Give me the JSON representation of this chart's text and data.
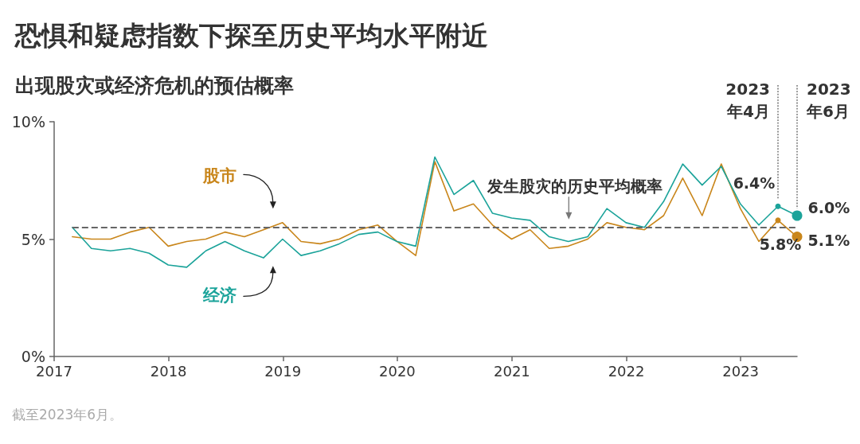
{
  "chart_data": {
    "type": "line",
    "title": "恐惧和疑虑指数下探至历史平均水平附近",
    "subtitle": "出现股灾或经济危机的预估概率",
    "x": [
      "2017-02-28",
      "2017-04-30",
      "2017-06-30",
      "2017-08-31",
      "2017-10-31",
      "2017-12-31",
      "2018-02-28",
      "2018-04-30",
      "2018-06-30",
      "2018-08-31",
      "2018-10-31",
      "2018-12-31",
      "2019-02-28",
      "2019-04-30",
      "2019-06-30",
      "2019-08-31",
      "2019-10-31",
      "2019-12-31",
      "2020-02-29",
      "2020-04-30",
      "2020-06-30",
      "2020-08-31",
      "2020-10-31",
      "2020-12-31",
      "2021-02-28",
      "2021-04-30",
      "2021-06-30",
      "2021-08-31",
      "2021-10-31",
      "2021-12-31",
      "2022-02-28",
      "2022-04-30",
      "2022-06-30",
      "2022-08-31",
      "2022-10-31",
      "2022-12-31",
      "2023-02-28",
      "2023-04-30",
      "2023-06-30"
    ],
    "series": [
      {
        "name": "股市",
        "color": "#c9861b",
        "values": [
          5.1,
          5.0,
          5.0,
          5.3,
          5.5,
          4.7,
          4.9,
          5.0,
          5.3,
          5.1,
          5.4,
          5.7,
          4.9,
          4.8,
          5.0,
          5.4,
          5.6,
          4.9,
          4.3,
          8.3,
          6.2,
          6.5,
          5.6,
          5.0,
          5.4,
          4.6,
          4.7,
          5.0,
          5.7,
          5.5,
          5.4,
          6.0,
          7.6,
          6.0,
          8.2,
          6.3,
          4.9,
          5.8,
          5.1
        ],
        "value_labels": [
          null,
          null,
          null,
          null,
          null,
          null,
          null,
          null,
          null,
          null,
          null,
          null,
          null,
          null,
          null,
          null,
          null,
          null,
          null,
          null,
          null,
          null,
          null,
          null,
          null,
          null,
          null,
          null,
          null,
          null,
          null,
          null,
          null,
          null,
          null,
          null,
          null,
          "5.8%",
          "5.1%"
        ]
      },
      {
        "name": "经济",
        "color": "#1ba39a",
        "values": [
          5.5,
          4.6,
          4.5,
          4.6,
          4.4,
          3.9,
          3.8,
          4.5,
          4.9,
          4.5,
          4.2,
          5.0,
          4.3,
          4.5,
          4.8,
          5.2,
          5.3,
          4.9,
          4.7,
          8.5,
          6.9,
          7.5,
          6.1,
          5.9,
          5.8,
          5.1,
          4.9,
          5.1,
          6.3,
          5.7,
          5.5,
          6.6,
          8.2,
          7.3,
          8.1,
          6.5,
          5.6,
          6.4,
          6.0
        ],
        "value_labels": [
          null,
          null,
          null,
          null,
          null,
          null,
          null,
          null,
          null,
          null,
          null,
          null,
          null,
          null,
          null,
          null,
          null,
          null,
          null,
          null,
          null,
          null,
          null,
          null,
          null,
          null,
          null,
          null,
          null,
          null,
          null,
          null,
          null,
          null,
          null,
          null,
          null,
          "6.4%",
          "6.0%"
        ]
      }
    ],
    "xlim": [
      "2017-01-01",
      "2023-06-30"
    ],
    "xticks": [
      "2017",
      "2018",
      "2019",
      "2020",
      "2021",
      "2022",
      "2023"
    ],
    "ylim": [
      0,
      10
    ],
    "yticks": [
      {
        "value": 0,
        "label": "0%"
      },
      {
        "value": 5,
        "label": "5%"
      },
      {
        "value": 10,
        "label": "10%"
      }
    ],
    "grid": false,
    "ref_lines": [
      {
        "axis": "y",
        "value": 5.5,
        "label": "发生股灾的历史平均概率",
        "line_style": "dashed",
        "color": "#666666"
      },
      {
        "axis": "x",
        "value": "2023-04-30",
        "label": "2023年4月",
        "line_style": "dotted",
        "color": "#888888"
      },
      {
        "axis": "x",
        "value": "2023-06-30",
        "label": "2023年6月",
        "line_style": "dotted",
        "color": "#888888"
      }
    ],
    "annotations": [
      "截至2023年6月。"
    ]
  }
}
